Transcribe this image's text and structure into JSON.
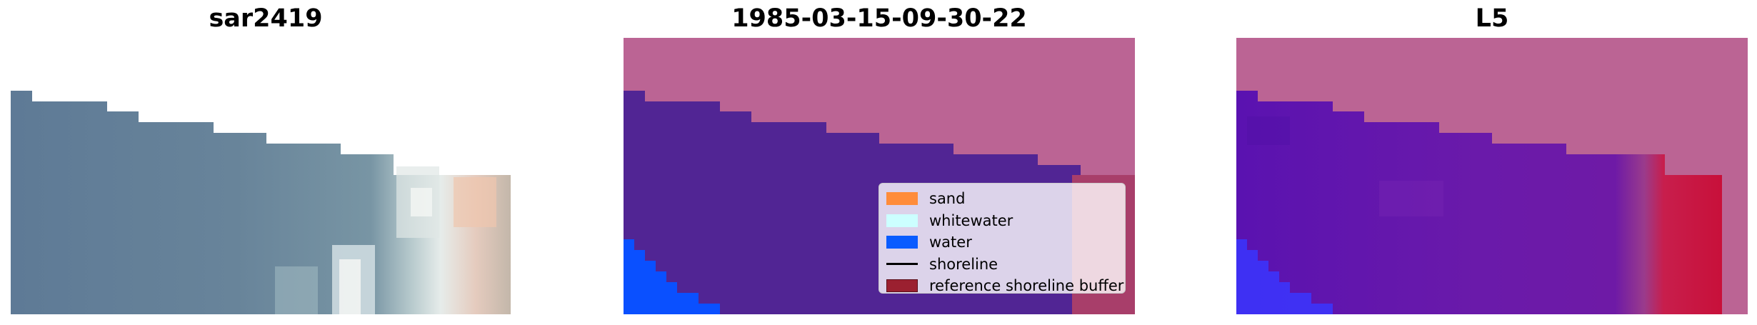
{
  "panels": [
    {
      "title": "sar2419",
      "kind": "rgb-image"
    },
    {
      "title": "1985-03-15-09-30-22",
      "kind": "classified-image"
    },
    {
      "title": "L5",
      "kind": "mndwi-image"
    }
  ],
  "legend": {
    "placement": "lower-right of middle panel",
    "items": [
      {
        "label": "sand",
        "color": "#ff8c3a",
        "type": "patch"
      },
      {
        "label": "whitewater",
        "color": "#ccffff",
        "type": "patch"
      },
      {
        "label": "water",
        "color": "#0a5cff",
        "type": "patch"
      },
      {
        "label": "shoreline",
        "color": "#000000",
        "type": "line"
      },
      {
        "label": "reference shoreline buffer",
        "color": "#9b2030",
        "type": "patch"
      }
    ]
  },
  "colors": {
    "nodata_overlay": "#bb6494",
    "water_class": "#512594",
    "water_edge": "#0a50ff",
    "buffer": "#a83e6a"
  }
}
